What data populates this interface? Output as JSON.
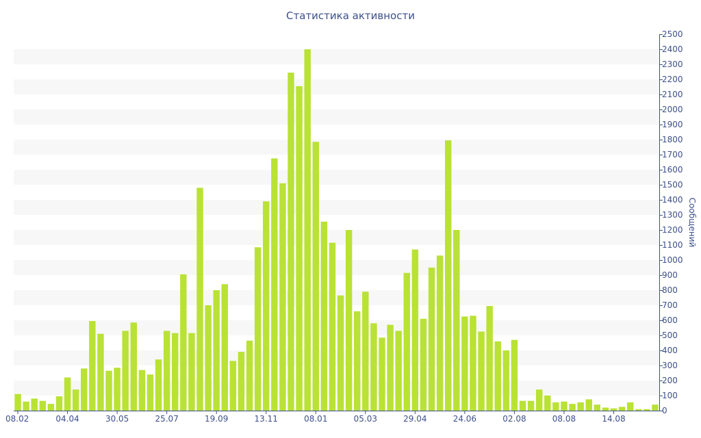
{
  "chart_data": {
    "type": "bar",
    "title": "Статистика активности",
    "ylabel": "Сообщений",
    "xlabel": "",
    "ylim": [
      0,
      2500
    ],
    "y_ticks": [
      0,
      100,
      200,
      300,
      400,
      500,
      600,
      700,
      800,
      900,
      1000,
      1100,
      1200,
      1300,
      1400,
      1500,
      1600,
      1700,
      1800,
      1900,
      2000,
      2100,
      2200,
      2300,
      2400,
      2500
    ],
    "y_axis_side": "right",
    "x_tick_labels": [
      {
        "index": 0,
        "label": "08.02"
      },
      {
        "index": 6,
        "label": "04.04"
      },
      {
        "index": 12,
        "label": "30.05"
      },
      {
        "index": 18,
        "label": "25.07"
      },
      {
        "index": 24,
        "label": "19.09"
      },
      {
        "index": 30,
        "label": "13.11"
      },
      {
        "index": 36,
        "label": "08.01"
      },
      {
        "index": 42,
        "label": "05.03"
      },
      {
        "index": 48,
        "label": "29.04"
      },
      {
        "index": 54,
        "label": "24.06"
      },
      {
        "index": 60,
        "label": "02.08"
      },
      {
        "index": 66,
        "label": "08.08"
      },
      {
        "index": 72,
        "label": "14.08"
      }
    ],
    "values": [
      110,
      60,
      80,
      65,
      45,
      95,
      220,
      140,
      280,
      595,
      510,
      265,
      285,
      530,
      585,
      270,
      240,
      340,
      530,
      515,
      905,
      515,
      1480,
      700,
      800,
      840,
      330,
      390,
      465,
      1085,
      1390,
      1675,
      1510,
      2245,
      2155,
      2400,
      1785,
      1255,
      1115,
      765,
      1200,
      660,
      790,
      580,
      485,
      570,
      530,
      915,
      1070,
      610,
      950,
      1030,
      1795,
      1200,
      625,
      630,
      525,
      695,
      460,
      400,
      470,
      65,
      65,
      140,
      100,
      55,
      60,
      45,
      55,
      75,
      40,
      20,
      15,
      25,
      55,
      10,
      10,
      40
    ],
    "bar_color": "#b9e235",
    "grid_band_color": "#f7f7f7",
    "axis_color": "#3d4f8a",
    "grid": true,
    "legend": "none"
  }
}
